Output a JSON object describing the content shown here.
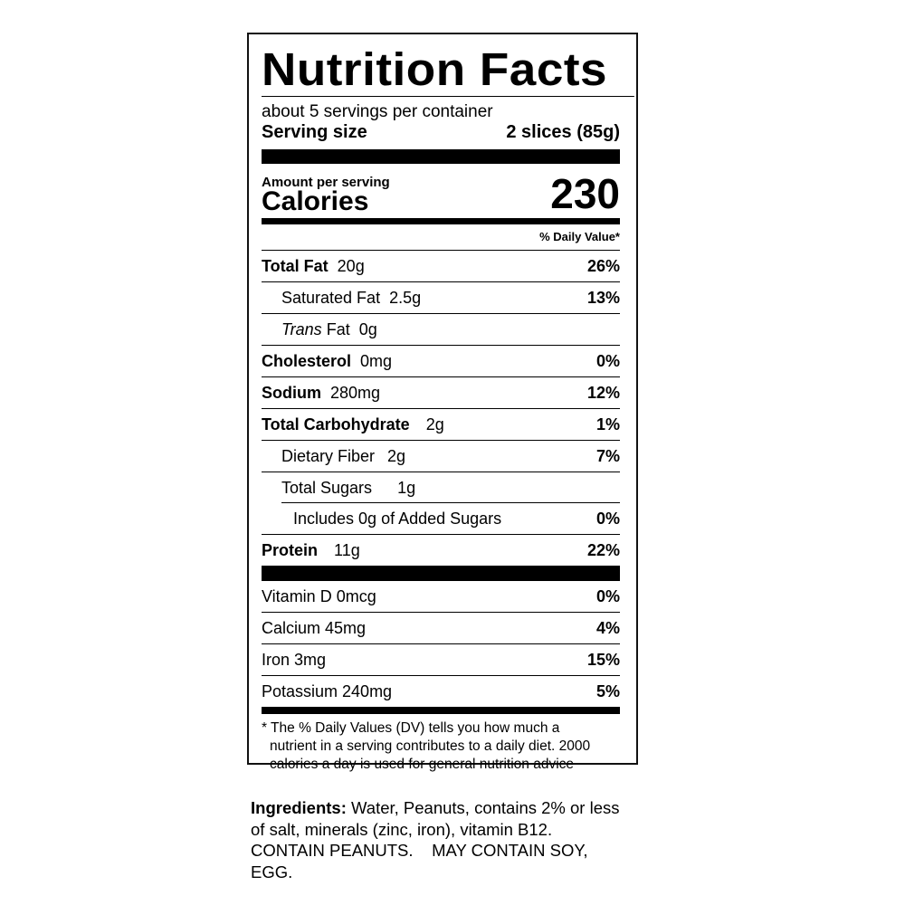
{
  "title": "Nutrition Facts",
  "servings_per_container": "about 5 servings per container",
  "serving_size_label": "Serving size",
  "serving_size_value": "2 slices (85g)",
  "amount_per_serving": "Amount per serving",
  "calories_label": "Calories",
  "calories_value": "230",
  "daily_value_header": "% Daily Value*",
  "nutrients": [
    {
      "name": "Total Fat",
      "amount": "20g",
      "dv": "26%"
    },
    {
      "name": "Saturated Fat",
      "amount": "2.5g",
      "dv": "13%"
    },
    {
      "name_italic": "Trans",
      "name": "Fat",
      "amount": "0g",
      "dv": ""
    },
    {
      "name": "Cholesterol",
      "amount": "0mg",
      "dv": "0%"
    },
    {
      "name": "Sodium",
      "amount": "280mg",
      "dv": "12%"
    },
    {
      "name": "Total Carbohydrate",
      "amount": "2g",
      "dv": "1%"
    },
    {
      "name": "Dietary Fiber",
      "amount": "2g",
      "dv": "7%"
    },
    {
      "name": "Total Sugars",
      "amount": "1g",
      "dv": ""
    },
    {
      "name": "Includes 0g of Added Sugars",
      "amount": "",
      "dv": "0%"
    },
    {
      "name": "Protein",
      "amount": "11g",
      "dv": "22%"
    }
  ],
  "vitamins": [
    {
      "name": "Vitamin D 0mcg",
      "dv": "0%"
    },
    {
      "name": "Calcium 45mg",
      "dv": "4%"
    },
    {
      "name": "Iron 3mg",
      "dv": "15%"
    },
    {
      "name": "Potassium 240mg",
      "dv": "5%"
    }
  ],
  "footnote": [
    "* The % Daily Values (DV) tells you how much a",
    "nutrient in a serving contributes to a daily diet. 2000",
    "calories a day is used for general nutrition advice"
  ],
  "ingredients": {
    "label": "Ingredients:",
    "text": " Water, Peanuts, contains 2% or less of salt, minerals (zinc, iron), vitamin B12. CONTAIN PEANUTS.    MAY CONTAIN SOY, EGG."
  }
}
